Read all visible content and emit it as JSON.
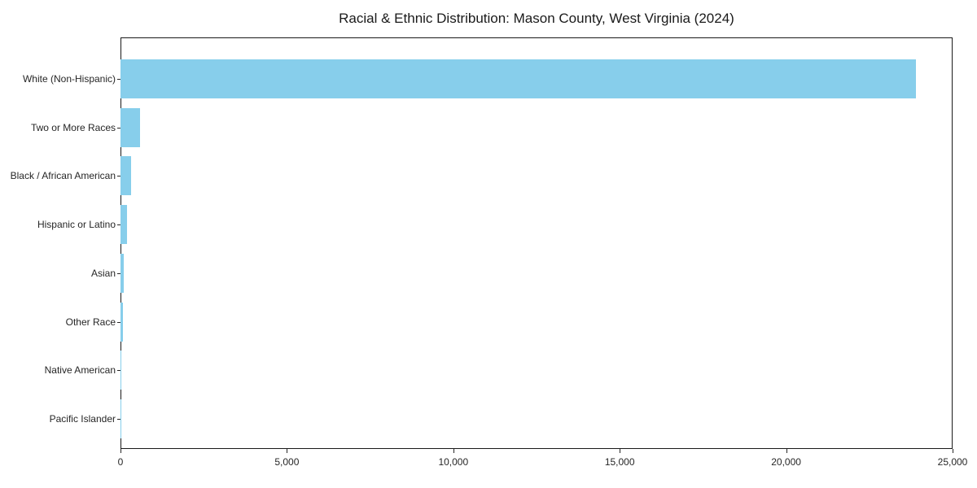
{
  "chart_data": {
    "type": "bar",
    "orientation": "horizontal",
    "title": "Racial & Ethnic Distribution: Mason County, West Virginia (2024)",
    "categories": [
      "White (Non-Hispanic)",
      "Two or More Races",
      "Black / African American",
      "Hispanic or Latino",
      "Asian",
      "Other Race",
      "Native American",
      "Pacific Islander"
    ],
    "values": [
      23900,
      590,
      320,
      200,
      100,
      75,
      20,
      5
    ],
    "xlabel": "",
    "ylabel": "",
    "xlim": [
      0,
      25000
    ],
    "xticks": [
      0,
      5000,
      10000,
      15000,
      20000,
      25000
    ],
    "xtick_labels": [
      "0",
      "5,000",
      "10,000",
      "15,000",
      "20,000",
      "25,000"
    ],
    "bar_color": "#87CEEB",
    "axis_color": "#1a1a1a",
    "text_color": "#262626",
    "grid": false,
    "legend": "none",
    "plot_background": "#ffffff"
  }
}
